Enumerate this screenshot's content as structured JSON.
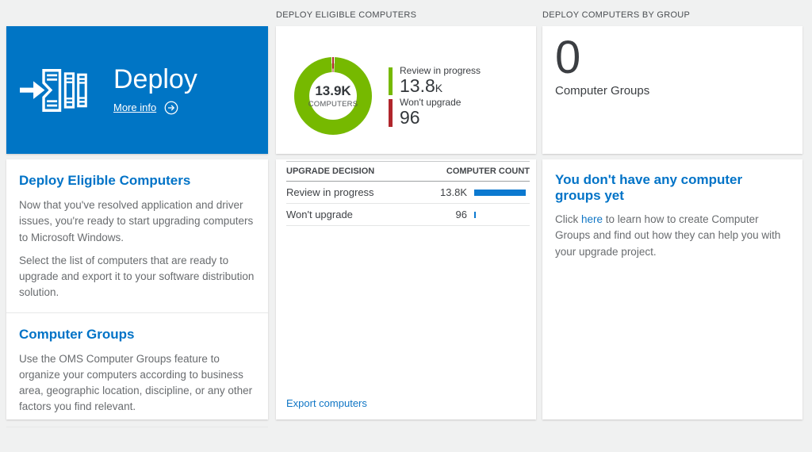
{
  "colors": {
    "tile_blue": "#0075c5",
    "accent_blue": "#0173c7",
    "bar_blue": "#0b79d0",
    "donut_green": "#76b900",
    "donut_red": "#b0262c"
  },
  "deploy_tile": {
    "title": "Deploy",
    "more_info_label": "More info"
  },
  "eligible": {
    "header": "DEPLOY ELIGIBLE COMPUTERS",
    "donut_center_value": "13.9K",
    "donut_center_label": "COMPUTERS",
    "legend": [
      {
        "label": "Review in progress",
        "value": "13.8",
        "suffix": "K"
      },
      {
        "label": "Won't upgrade",
        "value": "96",
        "suffix": ""
      }
    ],
    "table": {
      "columns": [
        "UPGRADE DECISION",
        "COMPUTER COUNT"
      ],
      "rows": [
        {
          "label": "Review in progress",
          "display": "13.8K",
          "count": 13800
        },
        {
          "label": "Won't upgrade",
          "display": "96",
          "count": 96
        }
      ]
    },
    "export_label": "Export computers"
  },
  "groups": {
    "header": "DEPLOY COMPUTERS BY GROUP",
    "count": "0",
    "count_label": "Computer Groups",
    "empty_title": "You don't have any computer groups yet",
    "empty_text_before_link": "Click ",
    "empty_link_text": "here",
    "empty_text_after_link": " to learn how to create Computer Groups and find out how they can help you with your upgrade project."
  },
  "left_panel": {
    "sections": [
      {
        "title": "Deploy Eligible Computers",
        "paragraphs": [
          "Now that you've resolved application and driver issues, you're ready to start upgrading computers to Microsoft Windows.",
          "Select the list of computers that are ready to upgrade and export it to your software distribution solution."
        ]
      },
      {
        "title": "Computer Groups",
        "paragraphs": [
          "Use the OMS Computer Groups feature to organize your computers according to business area, geographic location, discipline, or any other factors you find relevant."
        ]
      }
    ]
  },
  "chart_data": {
    "type": "pie",
    "title": "DEPLOY ELIGIBLE COMPUTERS",
    "center_value": "13.9K",
    "center_label": "COMPUTERS",
    "segments": [
      {
        "label": "Review in progress",
        "value": 13800,
        "color": "#76b900"
      },
      {
        "label": "Won't upgrade",
        "value": 96,
        "color": "#b0262c"
      }
    ],
    "legend_position": "right"
  }
}
